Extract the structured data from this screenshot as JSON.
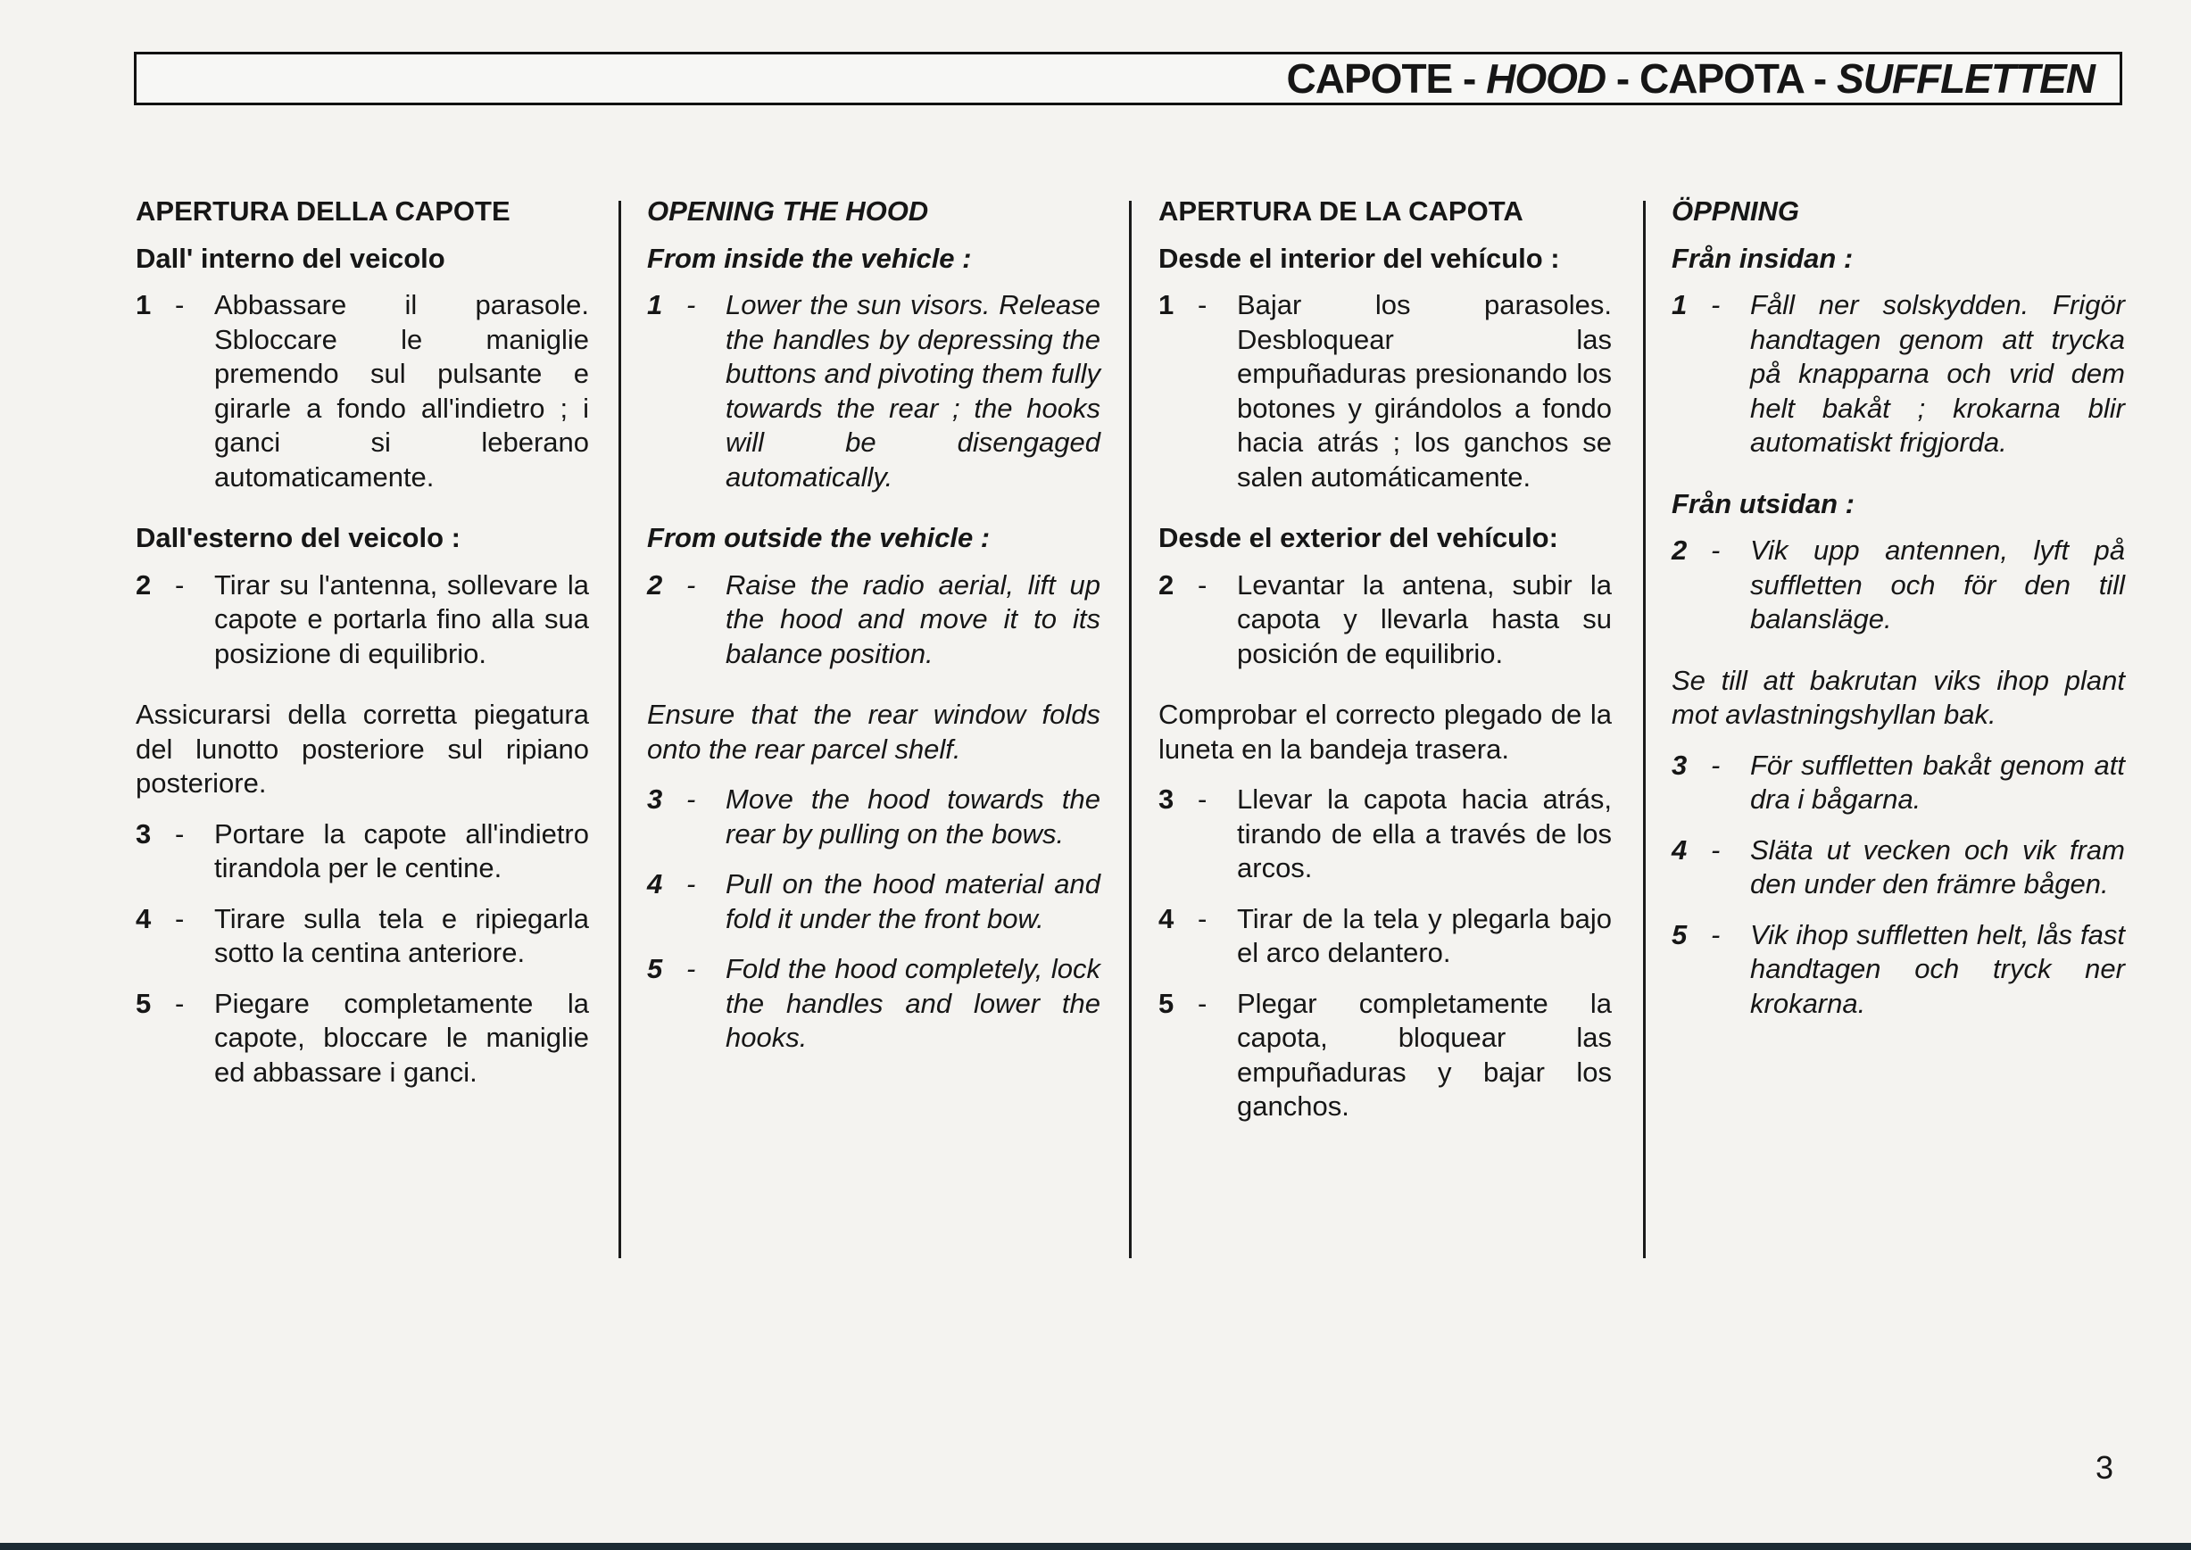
{
  "header": {
    "parts": [
      "CAPOTE",
      " - ",
      "HOOD",
      " - ",
      "CAPOTA",
      " - ",
      "SUFFLETTEN"
    ]
  },
  "page_number": "3",
  "columns": [
    {
      "lang": "it",
      "italic": false,
      "title": "APERTURA DELLA CAPOTE",
      "sub1": "Dall' interno del veicolo",
      "items": [
        {
          "num": "1",
          "text": "Abbassare il parasole. Sbloccare le maniglie premendo sul pulsante e girarle a fondo all'indietro ; i ganci si leberano automaticamente."
        },
        {
          "num": "2",
          "text": "Tirar su l'antenna, sollevare la capote e portarla fino alla sua posizione di equilibrio."
        },
        {
          "num": "3",
          "text": "Portare la capote all'indietro tirandola per le centine."
        },
        {
          "num": "4",
          "text": "Tirare sulla tela e ripiegarla sotto la centina anteriore."
        },
        {
          "num": "5",
          "text": "Piegare completamente la capote, bloccare le maniglie ed abbassare i ganci."
        }
      ],
      "sub2": "Dall'esterno del veicolo :",
      "note": "Assicurarsi della corretta piegatura del lunotto posteriore sul ripiano posteriore."
    },
    {
      "lang": "en",
      "italic": true,
      "title": "OPENING THE HOOD",
      "sub1": "From inside the vehicle :",
      "items": [
        {
          "num": "1",
          "text": "Lower the sun visors. Release the handles by depressing the buttons and pivoting them fully towards the rear ; the hooks will be disengaged automatically."
        },
        {
          "num": "2",
          "text": "Raise the radio aerial, lift up the hood and move it to its balance position."
        },
        {
          "num": "3",
          "text": "Move the hood towards the rear by pulling on the bows."
        },
        {
          "num": "4",
          "text": "Pull on the hood material and fold it under the front bow."
        },
        {
          "num": "5",
          "text": "Fold the hood completely, lock the handles and lower the hooks."
        }
      ],
      "sub2": "From outside the vehicle :",
      "note": "Ensure that the rear window folds onto the rear parcel shelf."
    },
    {
      "lang": "es",
      "italic": false,
      "title": "APERTURA DE LA CAPOTA",
      "sub1": "Desde el interior del vehículo :",
      "items": [
        {
          "num": "1",
          "text": "Bajar los parasoles. Desbloquear las empuñaduras presionando los botones y girándolos a fondo hacia atrás ; los ganchos se salen automáticamente."
        },
        {
          "num": "2",
          "text": "Levantar la antena, subir la capota y llevarla hasta su posición de equilibrio."
        },
        {
          "num": "3",
          "text": "Llevar la capota hacia atrás, tirando de ella a través de los arcos."
        },
        {
          "num": "4",
          "text": "Tirar de la tela y plegarla bajo el arco delantero."
        },
        {
          "num": "5",
          "text": "Plegar completamente la capota, bloquear las empuñaduras y bajar los ganchos."
        }
      ],
      "sub2": "Desde el exterior del vehículo:",
      "note": "Comprobar el correcto plegado de la luneta en la bandeja trasera."
    },
    {
      "lang": "sv",
      "italic": true,
      "title": "ÖPPNING",
      "sub1": "Från insidan :",
      "items": [
        {
          "num": "1",
          "text": "Fåll ner solskydden. Frigör handtagen genom att trycka på knapparna och vrid dem helt bakåt ; krokarna blir automatiskt frigjorda."
        },
        {
          "num": "2",
          "text": "Vik upp antennen, lyft på suffletten och för den till balansläge."
        },
        {
          "num": "3",
          "text": "För suffletten bakåt genom att dra i bågarna."
        },
        {
          "num": "4",
          "text": "Släta ut vecken och vik fram den under den främre bågen."
        },
        {
          "num": "5",
          "text": "Vik ihop suffletten helt, lås fast handtagen och tryck ner krokarna."
        }
      ],
      "sub2": "Från utsidan :",
      "note": "Se till att bakrutan viks ihop plant mot avlastningshyllan bak."
    }
  ]
}
